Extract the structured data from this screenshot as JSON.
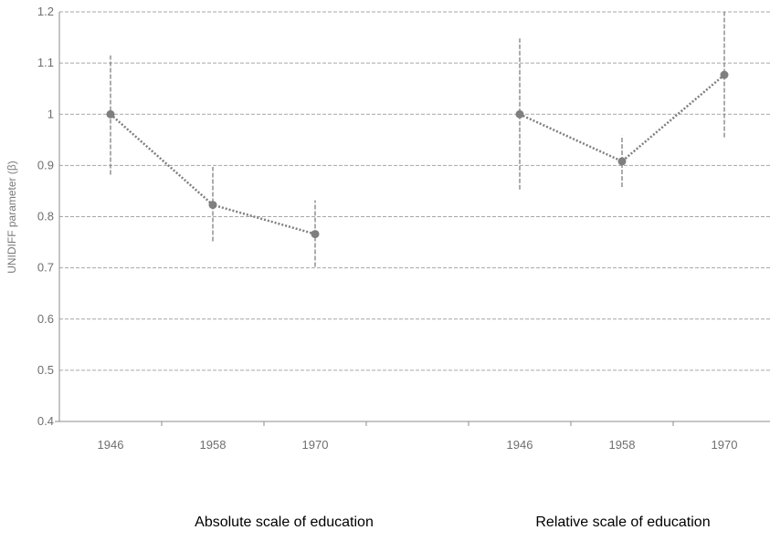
{
  "chart_data": {
    "type": "line",
    "title": "",
    "ylabel": "UNIDIFF parameter (β)",
    "ylim": [
      0.4,
      1.2
    ],
    "yticks": [
      "0.4",
      "0.5",
      "0.6",
      "0.7",
      "0.8",
      "0.9",
      "1",
      "1.1",
      "1.2"
    ],
    "grid": true,
    "colors": {
      "series": "#7f7f7f",
      "grid": "#a6a6a6",
      "axis": "#8c8c8c"
    },
    "groups": [
      {
        "label": "Absolute scale of education",
        "categories": [
          "1946",
          "1958",
          "1970"
        ],
        "values": [
          1.0,
          0.823,
          0.766
        ],
        "ci_low": [
          0.882,
          0.752,
          0.702
        ],
        "ci_high": [
          1.115,
          0.897,
          0.832
        ]
      },
      {
        "label": "Relative scale of education",
        "categories": [
          "1946",
          "1958",
          "1970"
        ],
        "values": [
          1.0,
          0.908,
          1.077
        ],
        "ci_low": [
          0.853,
          0.858,
          0.955
        ],
        "ci_high": [
          1.148,
          0.958,
          1.2
        ]
      }
    ]
  }
}
